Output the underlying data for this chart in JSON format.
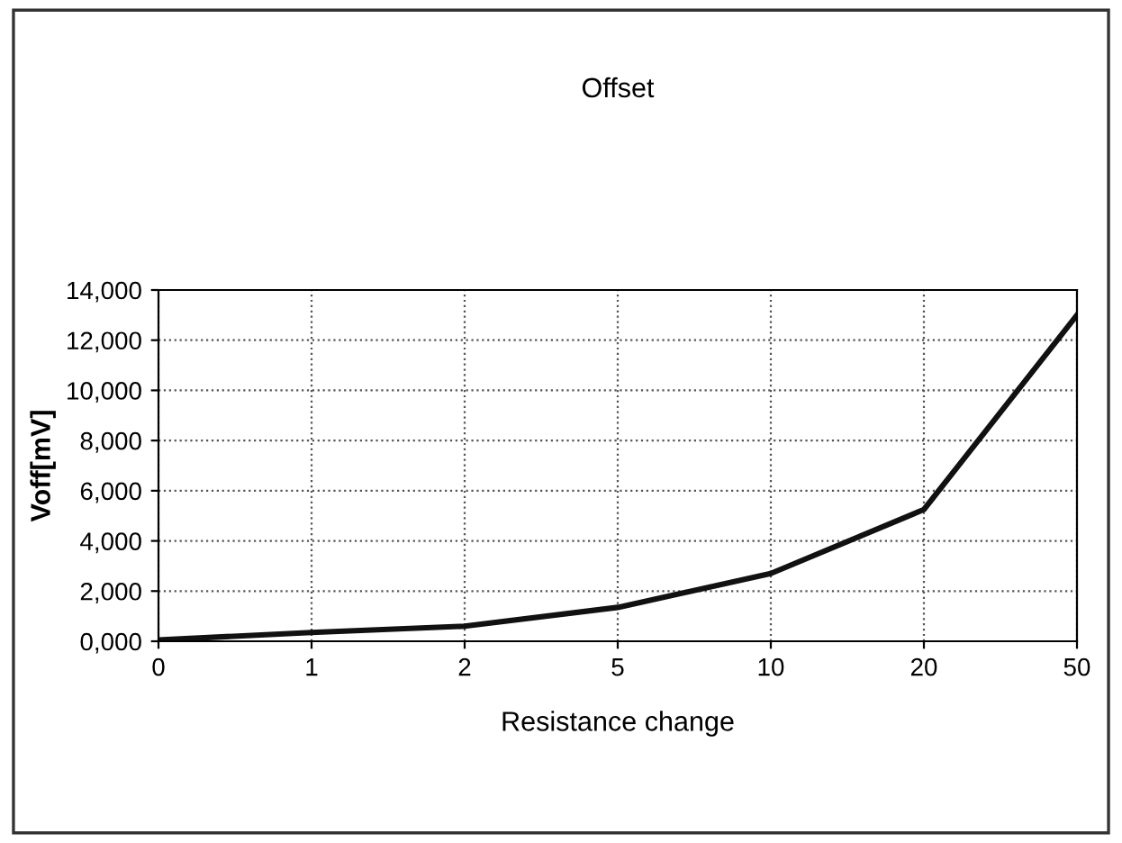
{
  "chart_data": {
    "type": "line",
    "title": "Offset",
    "xlabel": "Resistance change",
    "ylabel": "Voff[mV]",
    "categories": [
      "0",
      "1",
      "2",
      "5",
      "10",
      "20",
      "50"
    ],
    "series": [
      {
        "color": "#111111",
        "values": [
          50,
          350,
          600,
          1350,
          2700,
          5250,
          13000
        ]
      }
    ],
    "ylim": [
      0,
      14000
    ],
    "yticks": [
      {
        "value": 0,
        "label": "0,000"
      },
      {
        "value": 2000,
        "label": "2,000"
      },
      {
        "value": 4000,
        "label": "4,000"
      },
      {
        "value": 6000,
        "label": "6,000"
      },
      {
        "value": 8000,
        "label": "8,000"
      },
      {
        "value": 10000,
        "label": "10,000"
      },
      {
        "value": 12000,
        "label": "12,000"
      },
      {
        "value": 14000,
        "label": "14,000"
      }
    ],
    "grid": true,
    "legend": false,
    "marker": "none",
    "line_style": "solid"
  }
}
